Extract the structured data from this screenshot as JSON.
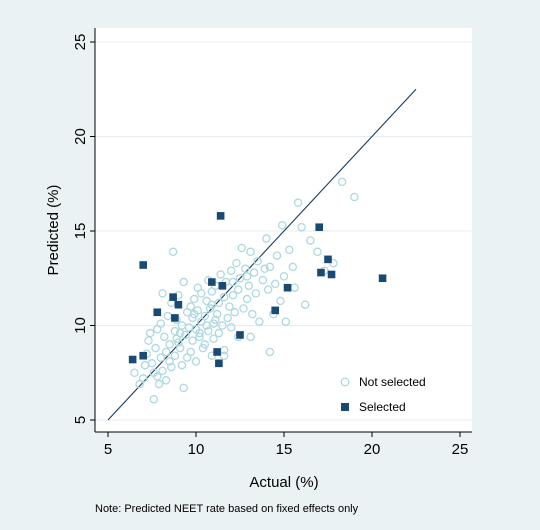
{
  "colors": {
    "page_bg": "#eaf2f3",
    "plot_bg": "#ffffff",
    "grid": "#e6ecef",
    "not_selected": "#aed8e0",
    "selected": "#1a4a72",
    "line": "#1a3a5c"
  },
  "note": "Note: Predicted NEET rate based on fixed effects only",
  "chart_data": {
    "type": "scatter",
    "title": "",
    "xlabel": "Actual (%)",
    "ylabel": "Predicted (%)",
    "xlim": [
      5,
      25
    ],
    "ylim": [
      5,
      25
    ],
    "xticks": [
      5,
      10,
      15,
      20,
      25
    ],
    "yticks": [
      5,
      10,
      15,
      20,
      25
    ],
    "grid": true,
    "legend_position": "bottom-right",
    "series": [
      {
        "name": "Not selected",
        "marker": "hollow-circle",
        "points": [
          [
            6.5,
            7.5
          ],
          [
            6.8,
            6.9
          ],
          [
            7.0,
            7.2
          ],
          [
            7.1,
            7.9
          ],
          [
            7.2,
            8.5
          ],
          [
            7.3,
            9.2
          ],
          [
            7.4,
            9.6
          ],
          [
            7.5,
            8.0
          ],
          [
            7.6,
            7.5
          ],
          [
            7.6,
            6.1
          ],
          [
            7.7,
            8.8
          ],
          [
            7.8,
            9.8
          ],
          [
            7.8,
            7.3
          ],
          [
            7.9,
            6.9
          ],
          [
            8.0,
            8.3
          ],
          [
            8.0,
            10.1
          ],
          [
            8.1,
            11.7
          ],
          [
            8.1,
            7.6
          ],
          [
            8.2,
            9.4
          ],
          [
            8.3,
            8.6
          ],
          [
            8.3,
            7.1
          ],
          [
            8.4,
            10.5
          ],
          [
            8.5,
            9.0
          ],
          [
            8.5,
            8.1
          ],
          [
            8.6,
            11.2
          ],
          [
            8.6,
            7.8
          ],
          [
            8.7,
            13.9
          ],
          [
            8.8,
            9.7
          ],
          [
            8.8,
            8.4
          ],
          [
            8.9,
            10.3
          ],
          [
            9.0,
            9.1
          ],
          [
            9.0,
            11.6
          ],
          [
            9.1,
            8.8
          ],
          [
            9.2,
            10.0
          ],
          [
            9.2,
            7.9
          ],
          [
            9.3,
            6.7
          ],
          [
            9.3,
            12.3
          ],
          [
            9.4,
            9.5
          ],
          [
            9.5,
            10.7
          ],
          [
            9.5,
            8.3
          ],
          [
            9.6,
            9.9
          ],
          [
            9.7,
            11.0
          ],
          [
            9.7,
            8.6
          ],
          [
            9.8,
            10.4
          ],
          [
            9.8,
            9.2
          ],
          [
            9.9,
            11.4
          ],
          [
            10.0,
            9.8
          ],
          [
            10.0,
            8.1
          ],
          [
            10.1,
            10.8
          ],
          [
            10.1,
            12.0
          ],
          [
            10.2,
            9.4
          ],
          [
            10.3,
            10.2
          ],
          [
            10.3,
            11.7
          ],
          [
            10.4,
            8.8
          ],
          [
            10.5,
            10.5
          ],
          [
            10.5,
            9.0
          ],
          [
            10.6,
            11.3
          ],
          [
            10.7,
            9.7
          ],
          [
            10.7,
            12.4
          ],
          [
            10.8,
            10.9
          ],
          [
            10.9,
            8.4
          ],
          [
            10.9,
            11.8
          ],
          [
            11.0,
            10.1
          ],
          [
            11.0,
            9.3
          ],
          [
            11.1,
            12.1
          ],
          [
            11.2,
            10.6
          ],
          [
            11.3,
            11.2
          ],
          [
            11.3,
            9.6
          ],
          [
            11.4,
            12.7
          ],
          [
            11.5,
            10.0
          ],
          [
            11.6,
            11.5
          ],
          [
            11.6,
            8.7
          ],
          [
            11.7,
            12.3
          ],
          [
            11.8,
            10.4
          ],
          [
            11.9,
            11.0
          ],
          [
            12.0,
            12.9
          ],
          [
            12.0,
            9.9
          ],
          [
            12.1,
            11.6
          ],
          [
            12.2,
            10.7
          ],
          [
            12.3,
            13.3
          ],
          [
            12.4,
            11.9
          ],
          [
            12.4,
            9.4
          ],
          [
            12.5,
            12.5
          ],
          [
            12.6,
            14.1
          ],
          [
            12.7,
            10.9
          ],
          [
            12.8,
            13.0
          ],
          [
            12.9,
            11.4
          ],
          [
            13.0,
            12.1
          ],
          [
            13.1,
            13.9
          ],
          [
            13.2,
            10.6
          ],
          [
            13.3,
            12.8
          ],
          [
            13.4,
            11.7
          ],
          [
            13.5,
            13.4
          ],
          [
            13.6,
            10.2
          ],
          [
            13.8,
            12.4
          ],
          [
            14.0,
            14.6
          ],
          [
            14.1,
            11.9
          ],
          [
            14.2,
            13.1
          ],
          [
            14.4,
            10.6
          ],
          [
            14.5,
            12.2
          ],
          [
            14.6,
            13.7
          ],
          [
            14.8,
            11.3
          ],
          [
            14.9,
            15.3
          ],
          [
            15.0,
            12.6
          ],
          [
            15.1,
            10.2
          ],
          [
            15.3,
            14.0
          ],
          [
            15.5,
            13.1
          ],
          [
            15.6,
            12.0
          ],
          [
            15.8,
            16.5
          ],
          [
            16.0,
            15.2
          ],
          [
            16.2,
            11.1
          ],
          [
            16.5,
            14.5
          ],
          [
            16.9,
            13.9
          ],
          [
            17.3,
            12.9
          ],
          [
            17.8,
            13.3
          ],
          [
            18.3,
            17.6
          ],
          [
            19.0,
            16.8
          ],
          [
            14.2,
            8.6
          ],
          [
            13.1,
            9.4
          ],
          [
            11.6,
            8.4
          ],
          [
            10.9,
            11.1
          ],
          [
            12.1,
            12.3
          ],
          [
            9.1,
            9.6
          ],
          [
            10.2,
            9.6
          ],
          [
            11.1,
            10.3
          ],
          [
            12.9,
            12.6
          ],
          [
            13.9,
            13.0
          ],
          [
            10.6,
            10.0
          ],
          [
            9.9,
            10.6
          ],
          [
            8.9,
            9.3
          ]
        ]
      },
      {
        "name": "Selected",
        "marker": "filled-square",
        "points": [
          [
            6.4,
            8.2
          ],
          [
            7.0,
            8.4
          ],
          [
            7.0,
            13.2
          ],
          [
            7.8,
            10.7
          ],
          [
            8.7,
            11.5
          ],
          [
            8.8,
            10.4
          ],
          [
            9.0,
            11.1
          ],
          [
            10.9,
            12.3
          ],
          [
            11.2,
            8.6
          ],
          [
            11.3,
            8.0
          ],
          [
            11.4,
            15.8
          ],
          [
            11.5,
            12.1
          ],
          [
            12.5,
            9.5
          ],
          [
            14.5,
            10.8
          ],
          [
            15.2,
            12.0
          ],
          [
            17.0,
            15.2
          ],
          [
            17.1,
            12.8
          ],
          [
            17.5,
            13.5
          ],
          [
            17.7,
            12.7
          ],
          [
            20.6,
            12.5
          ]
        ]
      }
    ],
    "reference_line": {
      "from": [
        5,
        5
      ],
      "to": [
        22.5,
        22.5
      ]
    }
  }
}
